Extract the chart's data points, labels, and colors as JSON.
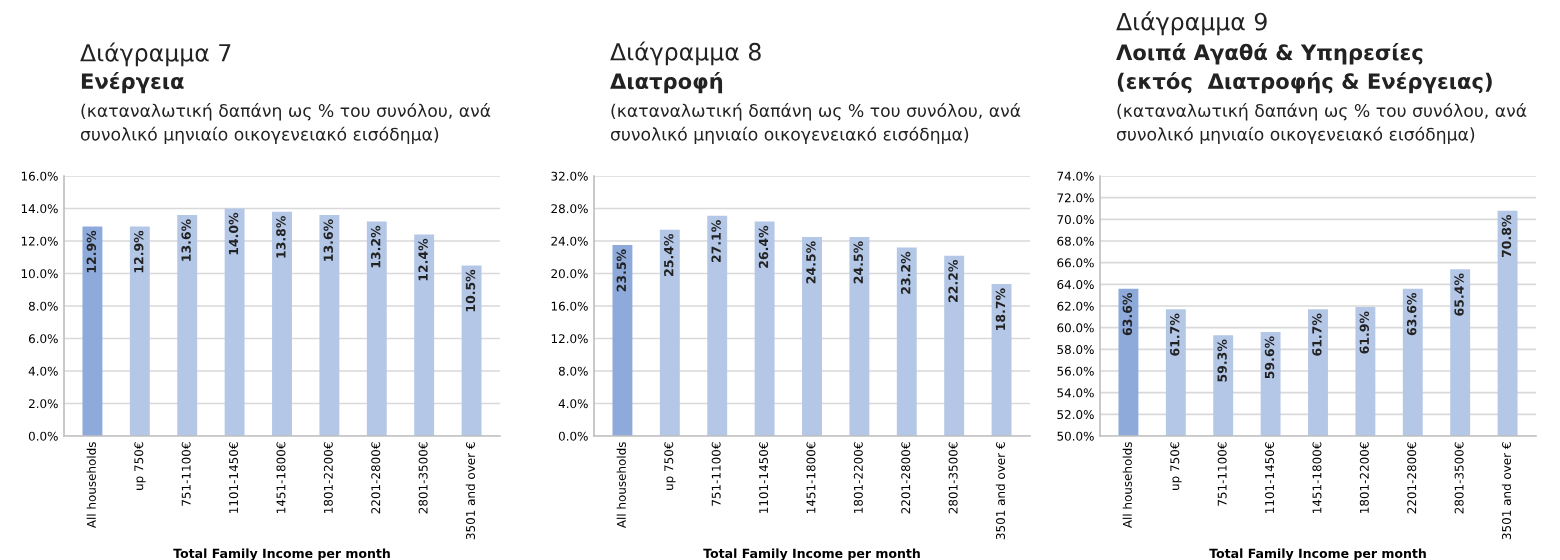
{
  "chart_data": [
    {
      "type": "bar",
      "title": "Διάγραμμα 7",
      "subtitle": "Ενέργεια",
      "annotations": [
        "(καταναλωτική δαπάνη ως % του συνόλου, ανά\nσυνολικό μηνιαίο οικογενειακό εισόδημα)"
      ],
      "xlabel": "Total Family Income per month",
      "categories": [
        "All households",
        "up 750€",
        "751-1100€",
        "1101-1450€",
        "1451-1800€",
        "1801-2200€",
        "2201-2800€",
        "2801-3500€",
        "3501 and over €"
      ],
      "values": [
        12.9,
        12.9,
        13.6,
        14.0,
        13.8,
        13.6,
        13.2,
        12.4,
        10.5
      ],
      "value_labels": [
        "12.9%",
        "12.9%",
        "13.6%",
        "14.0%",
        "13.8%",
        "13.6%",
        "13.2%",
        "12.4%",
        "10.5%"
      ],
      "colors": [
        "#8eaadb",
        "#b4c7e7",
        "#b4c7e7",
        "#b4c7e7",
        "#b4c7e7",
        "#b4c7e7",
        "#b4c7e7",
        "#b4c7e7",
        "#b4c7e7"
      ],
      "ylim": [
        0,
        16
      ],
      "yticks": [
        {
          "value": 0,
          "label": "0.0%"
        },
        {
          "value": 2,
          "label": "2.0%"
        },
        {
          "value": 4,
          "label": "4.0%"
        },
        {
          "value": 6,
          "label": "6.0%"
        },
        {
          "value": 8,
          "label": "8.0%"
        },
        {
          "value": 10,
          "label": "10.0%"
        },
        {
          "value": 12,
          "label": "12.0%"
        },
        {
          "value": 14,
          "label": "14.0%"
        },
        {
          "value": 16,
          "label": "16.0%"
        }
      ],
      "grid": "y",
      "legend": false
    },
    {
      "type": "bar",
      "title": "Διάγραμμα 8",
      "subtitle": "Διατροφή",
      "annotations": [
        "(καταναλωτική δαπάνη ως % του συνόλου, ανά\nσυνολικό μηνιαίο οικογενειακό εισόδημα)"
      ],
      "xlabel": "Total Family Income per month",
      "categories": [
        "All households",
        "up 750€",
        "751-1100€",
        "1101-1450€",
        "1451-1800€",
        "1801-2200€",
        "2201-2800€",
        "2801-3500€",
        "3501 and over €"
      ],
      "values": [
        23.5,
        25.4,
        27.1,
        26.4,
        24.5,
        24.5,
        23.2,
        22.2,
        18.7
      ],
      "value_labels": [
        "23.5%",
        "25.4%",
        "27.1%",
        "26.4%",
        "24.5%",
        "24.5%",
        "23.2%",
        "22.2%",
        "18.7%"
      ],
      "colors": [
        "#8eaadb",
        "#b4c7e7",
        "#b4c7e7",
        "#b4c7e7",
        "#b4c7e7",
        "#b4c7e7",
        "#b4c7e7",
        "#b4c7e7",
        "#b4c7e7"
      ],
      "ylim": [
        0,
        32
      ],
      "yticks": [
        {
          "value": 0,
          "label": "0.0%"
        },
        {
          "value": 4,
          "label": "4.0%"
        },
        {
          "value": 8,
          "label": "8.0%"
        },
        {
          "value": 12,
          "label": "12.0%"
        },
        {
          "value": 16,
          "label": "16.0%"
        },
        {
          "value": 20,
          "label": "20.0%"
        },
        {
          "value": 24,
          "label": "24.0%"
        },
        {
          "value": 28,
          "label": "28.0%"
        },
        {
          "value": 32,
          "label": "32.0%"
        }
      ],
      "grid": "y",
      "legend": false
    },
    {
      "type": "bar",
      "title": "Διάγραμμα 9",
      "subtitle": "Λοιπά Αγαθά & Υπηρεσίες\n(εκτός  Διατροφής & Ενέργειας)",
      "annotations": [
        "(καταναλωτική δαπάνη ως % του συνόλου, ανά\nσυνολικό μηνιαίο οικογενειακό εισόδημα)"
      ],
      "xlabel": "Total Family Income per month",
      "categories": [
        "All households",
        "up 750€",
        "751-1100€",
        "1101-1450€",
        "1451-1800€",
        "1801-2200€",
        "2201-2800€",
        "2801-3500€",
        "3501 and over €"
      ],
      "values": [
        63.6,
        61.7,
        59.3,
        59.6,
        61.7,
        61.9,
        63.6,
        65.4,
        70.8
      ],
      "value_labels": [
        "63.6%",
        "61.7%",
        "59.3%",
        "59.6%",
        "61.7%",
        "61.9%",
        "63.6%",
        "65.4%",
        "70.8%"
      ],
      "colors": [
        "#8eaadb",
        "#b4c7e7",
        "#b4c7e7",
        "#b4c7e7",
        "#b4c7e7",
        "#b4c7e7",
        "#b4c7e7",
        "#b4c7e7",
        "#b4c7e7"
      ],
      "ylim": [
        50,
        74
      ],
      "yticks": [
        {
          "value": 50,
          "label": "50.0%"
        },
        {
          "value": 52,
          "label": "52.0%"
        },
        {
          "value": 54,
          "label": "54.0%"
        },
        {
          "value": 56,
          "label": "56.0%"
        },
        {
          "value": 58,
          "label": "58.0%"
        },
        {
          "value": 60,
          "label": "60.0%"
        },
        {
          "value": 62,
          "label": "62.0%"
        },
        {
          "value": 64,
          "label": "64.0%"
        },
        {
          "value": 66,
          "label": "66.0%"
        },
        {
          "value": 68,
          "label": "68.0%"
        },
        {
          "value": 70,
          "label": "70.0%"
        },
        {
          "value": 72,
          "label": "72.0%"
        },
        {
          "value": 74,
          "label": "74.0%"
        }
      ],
      "grid": "y",
      "legend": false
    }
  ]
}
